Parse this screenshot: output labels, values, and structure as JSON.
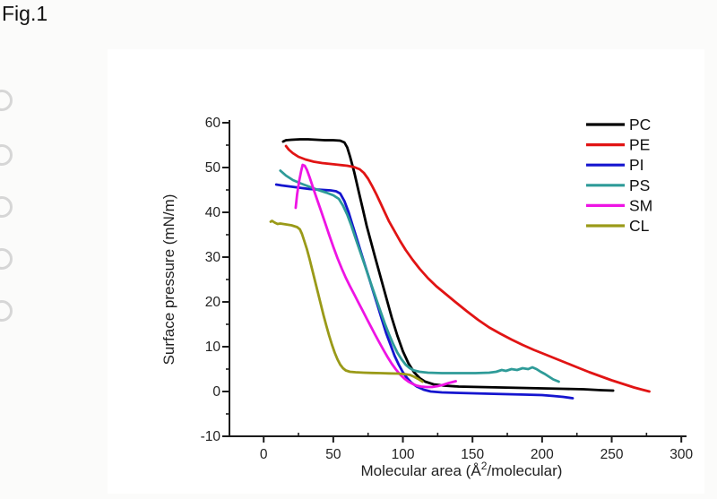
{
  "figure_label": "Fig.1",
  "chart_data": {
    "type": "line",
    "xlabel": "Molecular area (Å2/molecular)",
    "xlabel_rich": {
      "pre": "Molecular area (Å",
      "sup": "2",
      "post": "/molecular)"
    },
    "ylabel": "Surface pressure (mN/m)",
    "xlim": [
      -25,
      305
    ],
    "ylim": [
      -10,
      60
    ],
    "x_ticks": [
      0,
      50,
      100,
      150,
      200,
      250,
      300
    ],
    "x_minor_ticks": [
      25,
      75,
      125,
      175,
      225,
      275
    ],
    "y_ticks": [
      60,
      50,
      40,
      30,
      20,
      10,
      0,
      -10
    ],
    "y_minor_ticks": [
      55,
      45,
      35,
      25,
      15,
      5,
      -5
    ],
    "grid": false,
    "legend_position": "top-right",
    "axis_color": "#1c1c1c",
    "text_color": "#222222",
    "series": [
      {
        "name": "PC",
        "color": "#000000",
        "points": [
          [
            14,
            55.8
          ],
          [
            16,
            56.1
          ],
          [
            20,
            56.2
          ],
          [
            26,
            56.3
          ],
          [
            32,
            56.3
          ],
          [
            38,
            56.2
          ],
          [
            44,
            56.1
          ],
          [
            50,
            56.1
          ],
          [
            55,
            56
          ],
          [
            58,
            55.6
          ],
          [
            60,
            54.5
          ],
          [
            62,
            52.5
          ],
          [
            65,
            49
          ],
          [
            68,
            45
          ],
          [
            71,
            41
          ],
          [
            74,
            37
          ],
          [
            77,
            33.5
          ],
          [
            80,
            30
          ],
          [
            84,
            25.5
          ],
          [
            88,
            21
          ],
          [
            92,
            16.5
          ],
          [
            96,
            12.5
          ],
          [
            100,
            9
          ],
          [
            104,
            6.3
          ],
          [
            108,
            4.3
          ],
          [
            112,
            3
          ],
          [
            116,
            2.2
          ],
          [
            122,
            1.6
          ],
          [
            130,
            1.3
          ],
          [
            140,
            1.1
          ],
          [
            155,
            1
          ],
          [
            170,
            0.9
          ],
          [
            185,
            0.8
          ],
          [
            200,
            0.7
          ],
          [
            215,
            0.6
          ],
          [
            230,
            0.5
          ],
          [
            242,
            0.3
          ],
          [
            251,
            0.2
          ]
        ]
      },
      {
        "name": "PE",
        "color": "#e11414",
        "points": [
          [
            16,
            54.8
          ],
          [
            18,
            54
          ],
          [
            21,
            53.2
          ],
          [
            25,
            52.4
          ],
          [
            30,
            51.8
          ],
          [
            36,
            51.3
          ],
          [
            42,
            51
          ],
          [
            48,
            50.8
          ],
          [
            54,
            50.6
          ],
          [
            60,
            50.4
          ],
          [
            65,
            50.1
          ],
          [
            69,
            49.6
          ],
          [
            72,
            48.8
          ],
          [
            75,
            47.5
          ],
          [
            78,
            45.8
          ],
          [
            81,
            44
          ],
          [
            84,
            42
          ],
          [
            87,
            40
          ],
          [
            90,
            38
          ],
          [
            94,
            35.8
          ],
          [
            98,
            33.6
          ],
          [
            102,
            31.6
          ],
          [
            107,
            29.4
          ],
          [
            112,
            27.4
          ],
          [
            118,
            25.3
          ],
          [
            124,
            23.5
          ],
          [
            131,
            21.7
          ],
          [
            138,
            19.9
          ],
          [
            146,
            17.9
          ],
          [
            154,
            16
          ],
          [
            162,
            14.3
          ],
          [
            170,
            12.9
          ],
          [
            178,
            11.6
          ],
          [
            186,
            10.4
          ],
          [
            194,
            9.3
          ],
          [
            202,
            8.3
          ],
          [
            210,
            7.3
          ],
          [
            218,
            6.3
          ],
          [
            226,
            5.3
          ],
          [
            234,
            4.3
          ],
          [
            242,
            3.4
          ],
          [
            250,
            2.5
          ],
          [
            258,
            1.7
          ],
          [
            266,
            0.9
          ],
          [
            272,
            0.4
          ],
          [
            277,
            0
          ]
        ]
      },
      {
        "name": "PI",
        "color": "#1515cf",
        "points": [
          [
            9,
            46.2
          ],
          [
            13,
            46
          ],
          [
            18,
            45.8
          ],
          [
            23,
            45.6
          ],
          [
            28,
            45.4
          ],
          [
            33,
            45.2
          ],
          [
            38,
            45.1
          ],
          [
            43,
            45
          ],
          [
            48,
            44.9
          ],
          [
            52,
            44.7
          ],
          [
            55,
            44.2
          ],
          [
            58,
            42.5
          ],
          [
            61,
            40
          ],
          [
            64,
            37
          ],
          [
            67,
            34
          ],
          [
            70,
            31
          ],
          [
            73,
            28
          ],
          [
            76,
            25
          ],
          [
            79,
            22
          ],
          [
            82,
            19
          ],
          [
            85,
            16
          ],
          [
            88,
            13
          ],
          [
            91,
            10.5
          ],
          [
            94,
            8
          ],
          [
            97,
            6
          ],
          [
            100,
            4.3
          ],
          [
            103,
            3
          ],
          [
            106,
            2
          ],
          [
            110,
            1.1
          ],
          [
            115,
            0.4
          ],
          [
            120,
            0
          ],
          [
            128,
            -0.2
          ],
          [
            138,
            -0.3
          ],
          [
            150,
            -0.4
          ],
          [
            162,
            -0.5
          ],
          [
            175,
            -0.6
          ],
          [
            188,
            -0.7
          ],
          [
            200,
            -0.8
          ],
          [
            208,
            -1
          ],
          [
            215,
            -1.2
          ],
          [
            222,
            -1.5
          ]
        ]
      },
      {
        "name": "PS",
        "color": "#2e9b98",
        "points": [
          [
            12,
            49.3
          ],
          [
            16,
            48.2
          ],
          [
            21,
            47.2
          ],
          [
            27,
            46.4
          ],
          [
            33,
            45.7
          ],
          [
            39,
            45
          ],
          [
            45,
            44.4
          ],
          [
            50,
            43.8
          ],
          [
            54,
            43
          ],
          [
            57,
            41.5
          ],
          [
            60,
            39.5
          ],
          [
            63,
            37
          ],
          [
            66,
            34.2
          ],
          [
            69,
            31.5
          ],
          [
            72,
            28.8
          ],
          [
            75,
            26
          ],
          [
            78,
            23.2
          ],
          [
            81,
            20.5
          ],
          [
            84,
            17.8
          ],
          [
            87,
            15.2
          ],
          [
            90,
            12.8
          ],
          [
            93,
            10.6
          ],
          [
            96,
            8.7
          ],
          [
            99,
            7.2
          ],
          [
            102,
            6
          ],
          [
            105,
            5.2
          ],
          [
            108,
            4.7
          ],
          [
            112,
            4.4
          ],
          [
            118,
            4.2
          ],
          [
            128,
            4.1
          ],
          [
            140,
            4.1
          ],
          [
            152,
            4.1
          ],
          [
            162,
            4.2
          ],
          [
            167,
            4.4
          ],
          [
            171,
            4.8
          ],
          [
            174,
            4.6
          ],
          [
            178,
            5
          ],
          [
            182,
            4.8
          ],
          [
            186,
            5.2
          ],
          [
            190,
            5
          ],
          [
            193,
            5.4
          ],
          [
            196,
            5
          ],
          [
            199,
            4.4
          ],
          [
            202,
            3.9
          ],
          [
            205,
            3.3
          ],
          [
            208,
            2.7
          ],
          [
            212,
            2.2
          ]
        ]
      },
      {
        "name": "SM",
        "color": "#ee14e4",
        "points": [
          [
            23,
            41
          ],
          [
            24,
            44
          ],
          [
            25.5,
            47
          ],
          [
            27,
            49.3
          ],
          [
            28,
            50.6
          ],
          [
            29.5,
            50.4
          ],
          [
            31,
            49.5
          ],
          [
            33,
            47.8
          ],
          [
            35.5,
            45.5
          ],
          [
            38,
            43.2
          ],
          [
            41,
            40.5
          ],
          [
            44,
            37.8
          ],
          [
            47,
            35
          ],
          [
            50,
            32.3
          ],
          [
            53,
            29.8
          ],
          [
            56,
            27.5
          ],
          [
            59,
            25.4
          ],
          [
            62,
            23.5
          ],
          [
            65,
            21.7
          ],
          [
            68,
            19.9
          ],
          [
            71,
            18.1
          ],
          [
            74,
            16.3
          ],
          [
            77,
            14.5
          ],
          [
            80,
            12.7
          ],
          [
            83,
            11
          ],
          [
            86,
            9.3
          ],
          [
            89,
            7.7
          ],
          [
            92,
            6.2
          ],
          [
            95,
            4.9
          ],
          [
            98,
            3.8
          ],
          [
            101,
            2.9
          ],
          [
            104,
            2.2
          ],
          [
            107,
            1.7
          ],
          [
            110,
            1.3
          ],
          [
            113,
            1.1
          ],
          [
            117,
            1
          ],
          [
            121,
            1
          ],
          [
            125,
            1.2
          ],
          [
            129,
            1.5
          ],
          [
            133,
            1.9
          ],
          [
            138,
            2.3
          ]
        ]
      },
      {
        "name": "CL",
        "color": "#9a9a18",
        "points": [
          [
            5,
            37.9
          ],
          [
            6,
            38.1
          ],
          [
            8,
            37.7
          ],
          [
            10,
            37.4
          ],
          [
            12,
            37.5
          ],
          [
            14,
            37.4
          ],
          [
            16,
            37.3
          ],
          [
            18,
            37.2
          ],
          [
            20,
            37.1
          ],
          [
            22,
            36.9
          ],
          [
            24,
            36.7
          ],
          [
            26,
            36.2
          ],
          [
            27.5,
            35.2
          ],
          [
            29,
            33.8
          ],
          [
            31,
            31.8
          ],
          [
            33,
            29.5
          ],
          [
            35,
            27
          ],
          [
            37,
            24.5
          ],
          [
            39,
            22
          ],
          [
            41,
            19.5
          ],
          [
            43,
            17
          ],
          [
            45,
            14.7
          ],
          [
            47,
            12.5
          ],
          [
            49,
            10.5
          ],
          [
            51,
            8.7
          ],
          [
            53,
            7.2
          ],
          [
            55,
            6
          ],
          [
            57,
            5.2
          ],
          [
            59,
            4.7
          ],
          [
            62,
            4.4
          ],
          [
            66,
            4.3
          ],
          [
            72,
            4.2
          ],
          [
            78,
            4.15
          ],
          [
            84,
            4.1
          ],
          [
            90,
            4.05
          ],
          [
            96,
            4
          ],
          [
            101,
            3.9
          ],
          [
            105,
            3.7
          ],
          [
            108,
            3.3
          ],
          [
            111,
            2.8
          ],
          [
            114,
            2.2
          ]
        ]
      }
    ]
  }
}
